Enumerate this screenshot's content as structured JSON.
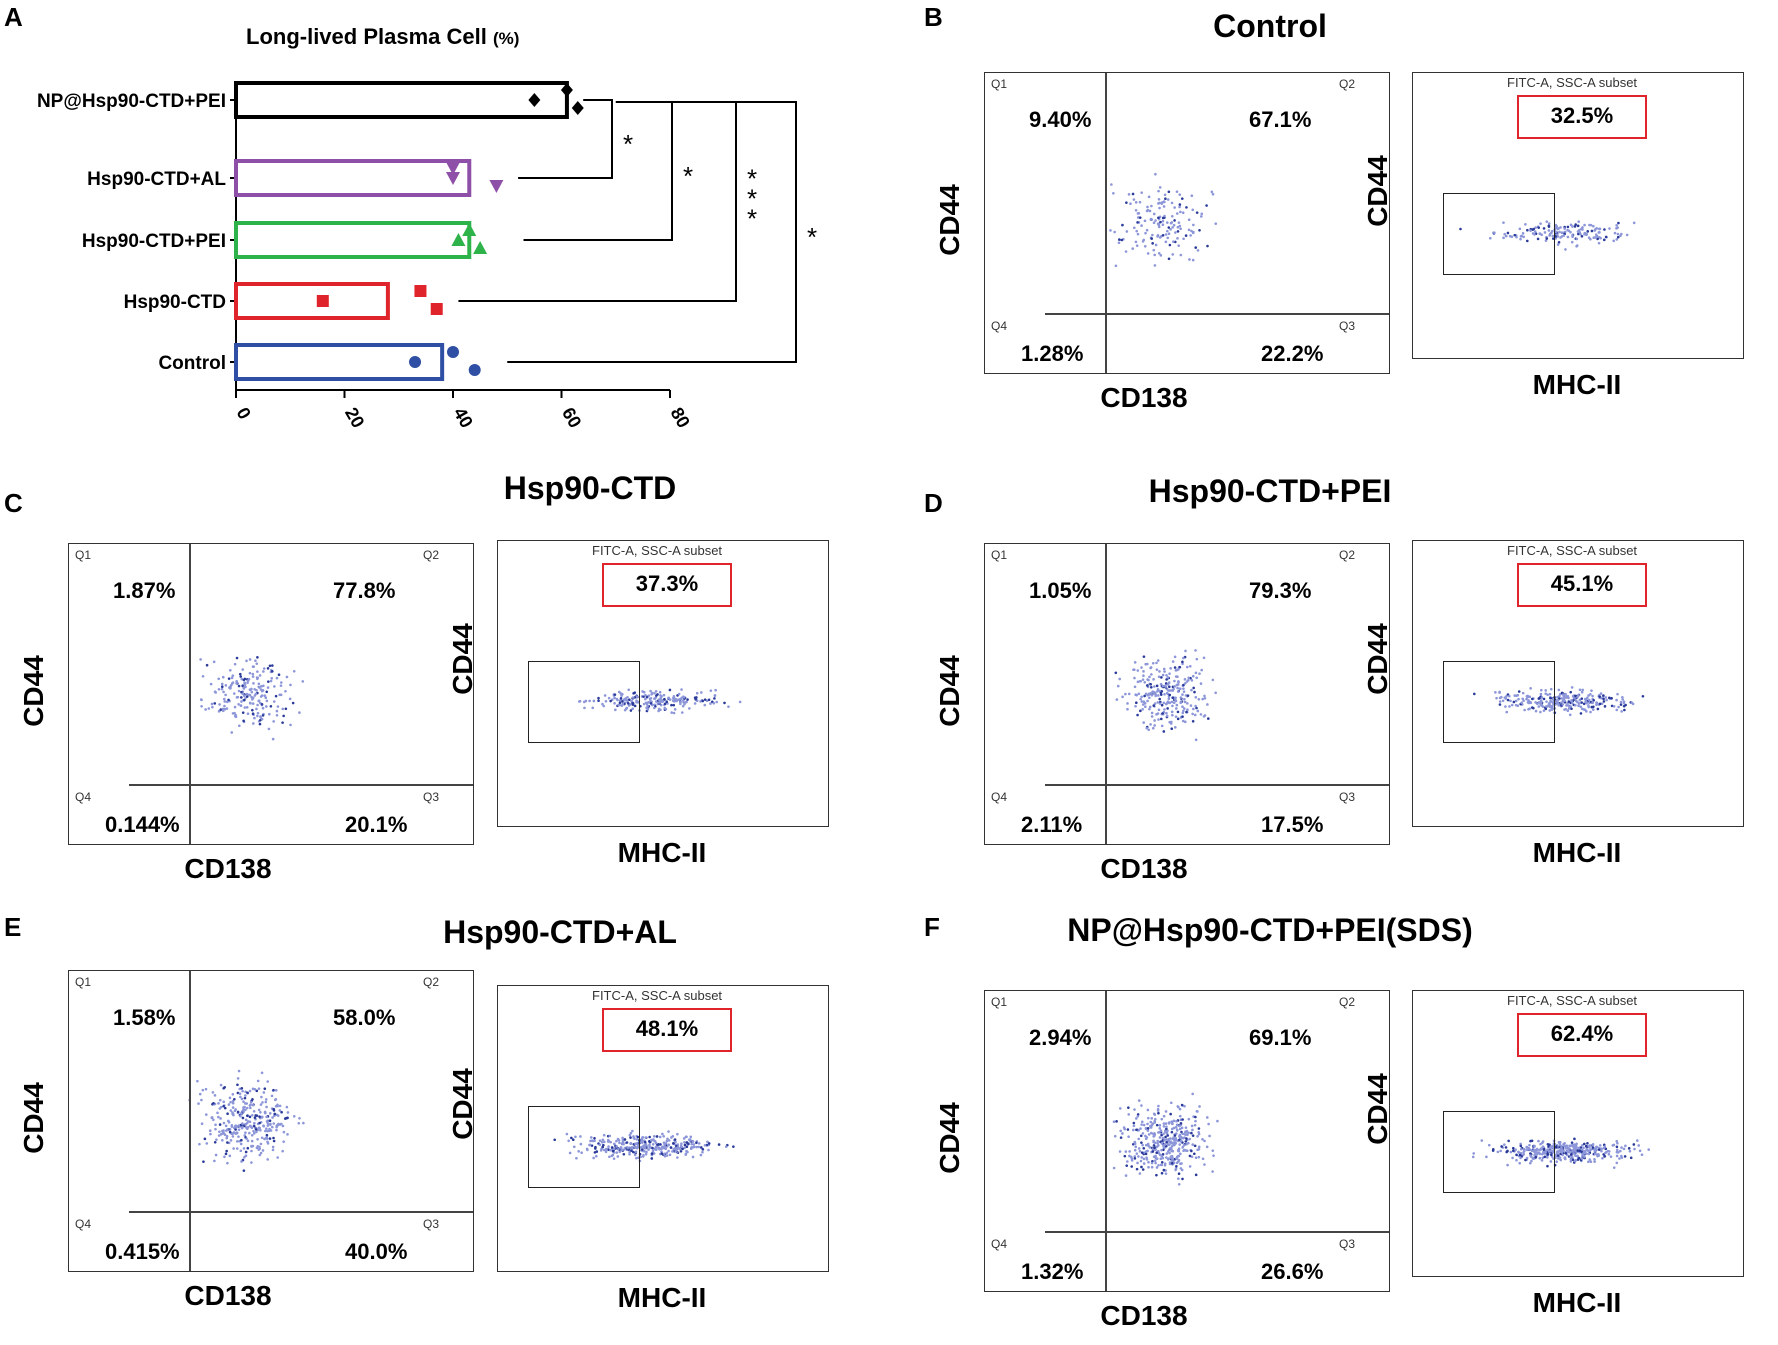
{
  "panels": {
    "A": "A",
    "B": "B",
    "C": "C",
    "D": "D",
    "E": "E",
    "F": "F"
  },
  "chart_data": {
    "type": "bar",
    "orientation": "horizontal",
    "title": "Long-lived Plasma Cell",
    "title_unit": "(%)",
    "categories": [
      "NP@Hsp90-CTD+PEI",
      "Hsp90-CTD+AL",
      "Hsp90-CTD+PEI",
      "Hsp90-CTD",
      "Control"
    ],
    "values": [
      61,
      43,
      43,
      28,
      38
    ],
    "points": [
      [
        55,
        61,
        63
      ],
      [
        40,
        40,
        48
      ],
      [
        41,
        43,
        45
      ],
      [
        16,
        34,
        37
      ],
      [
        33,
        40,
        44
      ]
    ],
    "colors": [
      "#000000",
      "#8e4fa8",
      "#2db34a",
      "#e0242b",
      "#2e4fa3"
    ],
    "markers": [
      "diamond",
      "triangle-down",
      "triangle-up",
      "square",
      "circle"
    ],
    "xlim": [
      0,
      80
    ],
    "xticks": [
      "0",
      "20",
      "40",
      "60",
      "80"
    ],
    "significance": [
      "*",
      "*",
      "***",
      "*"
    ]
  },
  "facs": [
    {
      "title": "Control",
      "quad": {
        "q1": "Q1",
        "q2": "Q2",
        "q3": "Q3",
        "q4": "Q4"
      },
      "percents": {
        "q1": "9.40%",
        "q2": "67.1%",
        "q3": "22.2%",
        "q4": "1.28%"
      },
      "gate_pct": "32.5%",
      "subset": "FITC-A, SSC-A subset",
      "x_left": "CD138",
      "x_right": "MHC-II",
      "y": "CD44"
    },
    {
      "title": "Hsp90-CTD",
      "quad": {
        "q1": "Q1",
        "q2": "Q2",
        "q3": "Q3",
        "q4": "Q4"
      },
      "percents": {
        "q1": "1.87%",
        "q2": "77.8%",
        "q3": "20.1%",
        "q4": "0.144%"
      },
      "gate_pct": "37.3%",
      "subset": "FITC-A, SSC-A subset",
      "x_left": "CD138",
      "x_right": "MHC-II",
      "y": "CD44"
    },
    {
      "title": "Hsp90-CTD+PEI",
      "quad": {
        "q1": "Q1",
        "q2": "Q2",
        "q3": "Q3",
        "q4": "Q4"
      },
      "percents": {
        "q1": "1.05%",
        "q2": "79.3%",
        "q3": "17.5%",
        "q4": "2.11%"
      },
      "gate_pct": "45.1%",
      "subset": "FITC-A, SSC-A subset",
      "x_left": "CD138",
      "x_right": "MHC-II",
      "y": "CD44"
    },
    {
      "title": "Hsp90-CTD+AL",
      "quad": {
        "q1": "Q1",
        "q2": "Q2",
        "q3": "Q3",
        "q4": "Q4"
      },
      "percents": {
        "q1": "1.58%",
        "q2": "58.0%",
        "q3": "40.0%",
        "q4": "0.415%"
      },
      "gate_pct": "48.1%",
      "subset": "FITC-A, SSC-A subset",
      "x_left": "CD138",
      "x_right": "MHC-II",
      "y": "CD44"
    },
    {
      "title": "NP@Hsp90-CTD+PEI(SDS)",
      "quad": {
        "q1": "Q1",
        "q2": "Q2",
        "q3": "Q3",
        "q4": "Q4"
      },
      "percents": {
        "q1": "2.94%",
        "q2": "69.1%",
        "q3": "26.6%",
        "q4": "1.32%"
      },
      "gate_pct": "62.4%",
      "subset": "FITC-A, SSC-A subset",
      "x_left": "CD138",
      "x_right": "MHC-II",
      "y": "CD44"
    }
  ]
}
